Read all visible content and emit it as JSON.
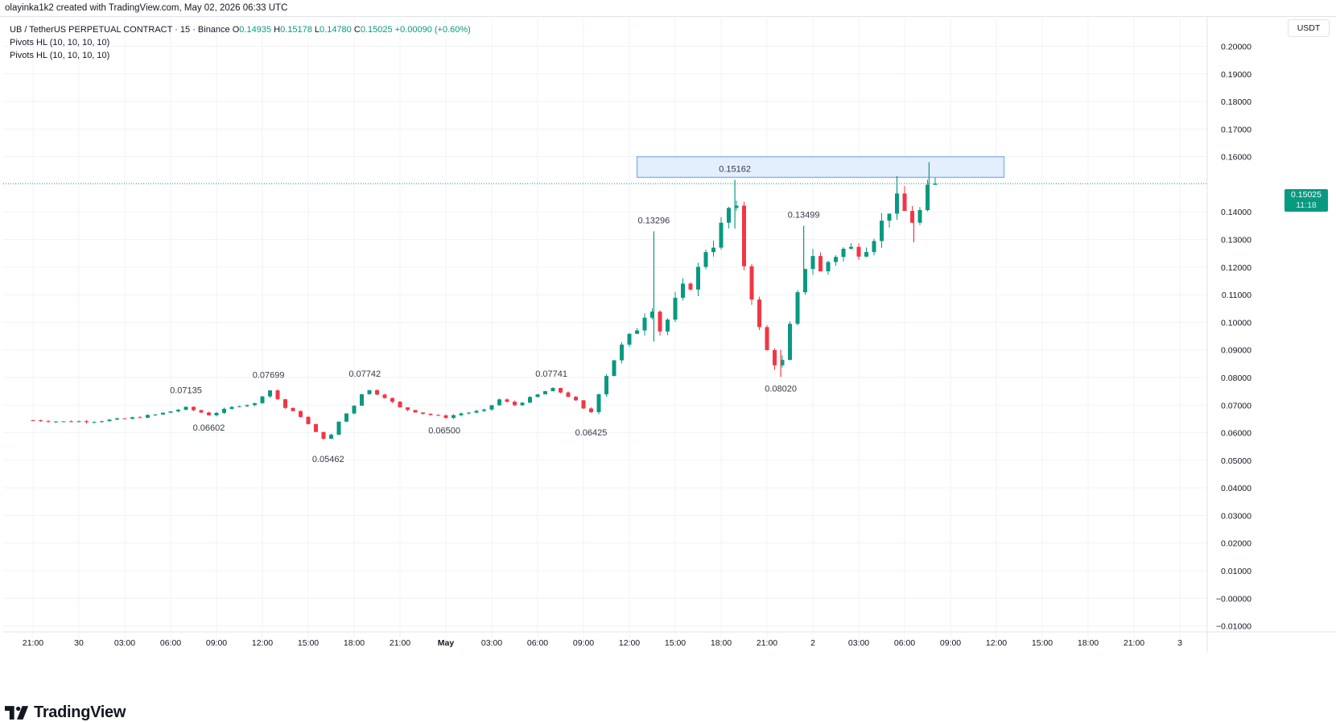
{
  "header": {
    "text": "olayinka1k2 created with TradingView.com, May 02, 2026 06:33 UTC"
  },
  "legend": {
    "symbol": "UB / TetherUS PERPETUAL CONTRACT · 15 · Binance",
    "o_label": "O",
    "o": "0.14935",
    "h_label": "H",
    "h": "0.15178",
    "l_label": "L",
    "l": "0.14780",
    "c_label": "C",
    "c": "0.15025",
    "change": "+0.00090 (+0.60%)",
    "indicators": [
      "Pivots HL (10, 10, 10, 10)",
      "Pivots HL (10, 10, 10, 10)"
    ]
  },
  "price_axis": {
    "unit": "USDT"
  },
  "last_price": {
    "value": "0.15025",
    "countdown": "11:18"
  },
  "footer": {
    "brand": "TradingView"
  },
  "colors": {
    "up": "#089981",
    "down": "#f23645",
    "grid": "#f0f3fa",
    "zone_fill": "#e3effd",
    "zone_stroke": "#8fb8e8",
    "text": "#131722"
  },
  "chart_data": {
    "type": "candlestick",
    "title": "UB / TetherUS PERPETUAL CONTRACT · 15 · Binance",
    "ylim": [
      -0.013,
      0.213
    ],
    "y_ticks": [
      "0.20000",
      "0.19000",
      "0.18000",
      "0.17000",
      "0.16000",
      "0.14000",
      "0.13000",
      "0.12000",
      "0.11000",
      "0.10000",
      "0.09000",
      "0.08000",
      "0.07000",
      "0.06000",
      "0.05000",
      "0.04000",
      "0.03000",
      "0.02000",
      "0.01000",
      "−0.00000",
      "−0.01000"
    ],
    "x_ticks": [
      "21:00",
      "30",
      "03:00",
      "06:00",
      "09:00",
      "12:00",
      "15:00",
      "18:00",
      "21:00",
      "May",
      "03:00",
      "06:00",
      "09:00",
      "12:00",
      "15:00",
      "18:00",
      "21:00",
      "2",
      "03:00",
      "06:00",
      "09:00",
      "12:00",
      "15:00",
      "18:00",
      "21:00",
      "3"
    ],
    "x_range_hours": [
      -29,
      48
    ],
    "last_close": 0.15025,
    "resistance_zone": {
      "x_start_hours": 10.5,
      "x_end_hours": 34.5,
      "y_low": 0.1525,
      "y_high": 0.16
    },
    "pivots": [
      {
        "label": "0.07135",
        "x_hours": -19.0,
        "price": 0.07135,
        "type": "high"
      },
      {
        "label": "0.06602",
        "x_hours": -17.5,
        "price": 0.06602,
        "type": "low"
      },
      {
        "label": "0.07699",
        "x_hours": -13.6,
        "price": 0.07699,
        "type": "high"
      },
      {
        "label": "0.05462",
        "x_hours": -9.7,
        "price": 0.05462,
        "type": "low"
      },
      {
        "label": "0.07742",
        "x_hours": -7.3,
        "price": 0.07742,
        "type": "high"
      },
      {
        "label": "0.06500",
        "x_hours": -2.1,
        "price": 0.065,
        "type": "low"
      },
      {
        "label": "0.07741",
        "x_hours": 4.9,
        "price": 0.07741,
        "type": "high"
      },
      {
        "label": "0.06425",
        "x_hours": 7.5,
        "price": 0.06425,
        "type": "low"
      },
      {
        "label": "0.13296",
        "x_hours": 11.6,
        "price": 0.13296,
        "type": "high"
      },
      {
        "label": "0.15162",
        "x_hours": 16.9,
        "price": 0.15162,
        "type": "high"
      },
      {
        "label": "0.08020",
        "x_hours": 19.9,
        "price": 0.0802,
        "type": "low"
      },
      {
        "label": "0.13499",
        "x_hours": 21.4,
        "price": 0.13499,
        "type": "high"
      }
    ],
    "path": [
      [
        -29.0,
        0.0645
      ],
      [
        -27.0,
        0.064
      ],
      [
        -25.0,
        0.0642
      ],
      [
        -23.0,
        0.065
      ],
      [
        -21.0,
        0.0665
      ],
      [
        -19.0,
        0.069
      ],
      [
        -17.5,
        0.0665
      ],
      [
        -15.5,
        0.07
      ],
      [
        -14.5,
        0.0705
      ],
      [
        -13.6,
        0.076
      ],
      [
        -12.5,
        0.069
      ],
      [
        -11.5,
        0.066
      ],
      [
        -10.5,
        0.06
      ],
      [
        -9.7,
        0.057
      ],
      [
        -9.0,
        0.064
      ],
      [
        -8.0,
        0.07
      ],
      [
        -7.3,
        0.076
      ],
      [
        -6.0,
        0.073
      ],
      [
        -5.0,
        0.069
      ],
      [
        -3.5,
        0.067
      ],
      [
        -2.1,
        0.0655
      ],
      [
        -1.0,
        0.067
      ],
      [
        0.5,
        0.068
      ],
      [
        1.5,
        0.072
      ],
      [
        2.5,
        0.07
      ],
      [
        3.5,
        0.0725
      ],
      [
        4.9,
        0.076
      ],
      [
        5.8,
        0.074
      ],
      [
        6.6,
        0.071
      ],
      [
        7.4,
        0.066
      ],
      [
        8.0,
        0.075
      ],
      [
        8.8,
        0.085
      ],
      [
        9.6,
        0.092
      ],
      [
        10.4,
        0.097
      ],
      [
        11.1,
        0.104
      ],
      [
        11.6,
        0.106
      ],
      [
        12.1,
        0.095
      ],
      [
        12.7,
        0.104
      ],
      [
        13.4,
        0.112
      ],
      [
        14.2,
        0.114
      ],
      [
        14.9,
        0.126
      ],
      [
        15.6,
        0.129
      ],
      [
        16.3,
        0.139
      ],
      [
        16.9,
        0.145
      ],
      [
        17.3,
        0.125
      ],
      [
        17.8,
        0.115
      ],
      [
        18.4,
        0.099
      ],
      [
        19.1,
        0.088
      ],
      [
        19.9,
        0.083
      ],
      [
        20.4,
        0.096
      ],
      [
        20.9,
        0.107
      ],
      [
        21.4,
        0.119
      ],
      [
        21.9,
        0.126
      ],
      [
        22.5,
        0.118
      ],
      [
        23.0,
        0.122
      ],
      [
        23.6,
        0.125
      ],
      [
        24.2,
        0.127
      ],
      [
        25.0,
        0.126
      ],
      [
        25.6,
        0.128
      ],
      [
        26.2,
        0.133
      ],
      [
        26.8,
        0.139
      ],
      [
        27.4,
        0.145
      ],
      [
        28.0,
        0.14
      ],
      [
        28.5,
        0.137
      ],
      [
        29.0,
        0.14
      ],
      [
        29.6,
        0.149
      ],
      [
        30.0,
        0.15025
      ]
    ],
    "wicks": [
      {
        "x_hours": 11.6,
        "high": 0.13296,
        "low": 0.093
      },
      {
        "x_hours": 16.9,
        "high": 0.15162,
        "low": 0.134
      },
      {
        "x_hours": 19.9,
        "high": 0.09,
        "low": 0.0802
      },
      {
        "x_hours": 21.4,
        "high": 0.13499,
        "low": 0.118
      },
      {
        "x_hours": 27.5,
        "high": 0.153,
        "low": 0.138
      },
      {
        "x_hours": 28.6,
        "high": 0.139,
        "low": 0.129
      },
      {
        "x_hours": 29.6,
        "high": 0.158,
        "low": 0.144
      }
    ]
  }
}
